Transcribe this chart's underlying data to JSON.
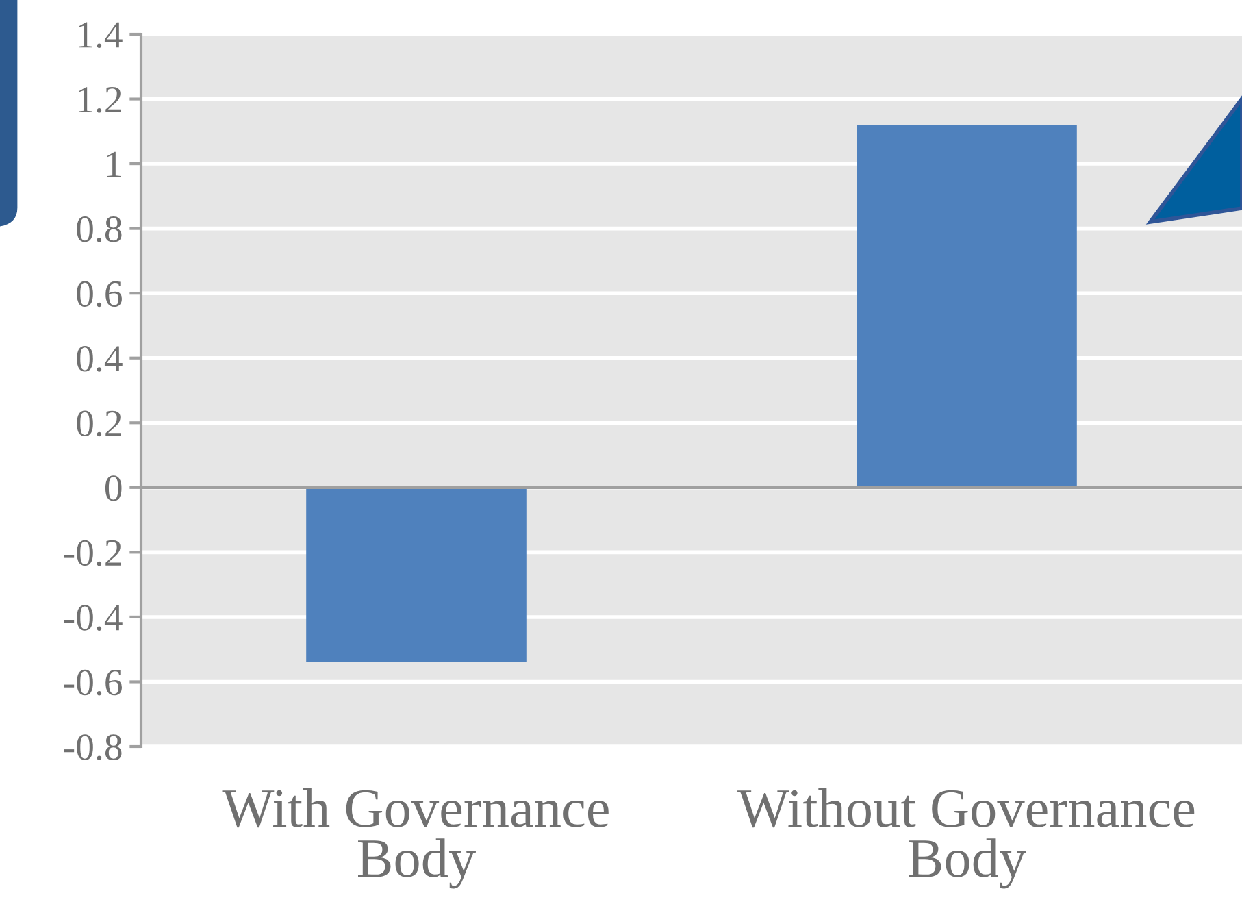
{
  "chart_data": {
    "type": "bar",
    "categories": [
      "With Governance\nBody",
      "Without Governance\nBody"
    ],
    "values": [
      -0.54,
      1.12
    ],
    "color": "#4f81bd",
    "ylim": [
      -0.8,
      1.4
    ],
    "yticks": [
      -0.8,
      -0.6,
      -0.4,
      -0.2,
      0,
      0.2,
      0.4,
      0.6,
      0.8,
      1,
      1.2,
      1.4
    ],
    "grid": "y"
  }
}
